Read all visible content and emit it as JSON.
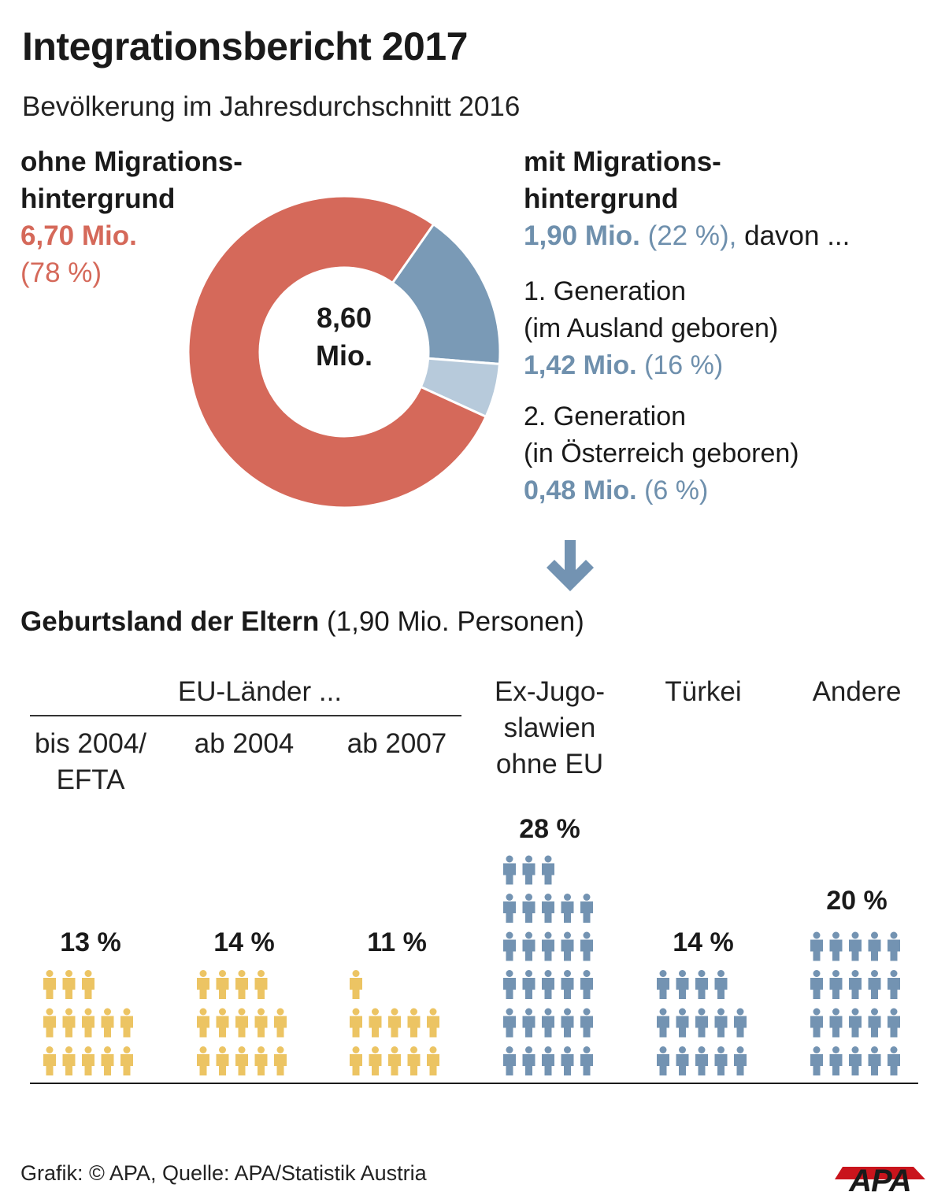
{
  "title": "Integrationsbericht 2017",
  "subtitle": "Bevölkerung im Jahresdurchschnitt 2016",
  "colors": {
    "red": "#d5695a",
    "blue_dark": "#7a9ab6",
    "blue_light": "#b7cadb",
    "eu_yellow": "#ecc463",
    "people_blue": "#7393b2"
  },
  "left": {
    "label_line1": "ohne Migrations-",
    "label_line2": "hintergrund",
    "value": "6,70 Mio.",
    "pct": "(78 %)"
  },
  "right": {
    "label_line1": "mit Migrations-",
    "label_line2": "hintergrund",
    "value": "1,90 Mio.",
    "pct": "(22 %),",
    "suffix": "davon ...",
    "gen1_line1": "1. Generation",
    "gen1_line2": "(im Ausland geboren)",
    "gen1_value": "1,42 Mio.",
    "gen1_pct": "(16 %)",
    "gen2_line1": "2. Generation",
    "gen2_line2": "(in Österreich geboren)",
    "gen2_value": "0,48 Mio.",
    "gen2_pct": "(6 %)"
  },
  "donut": {
    "center_line1": "8,60",
    "center_line2": "Mio."
  },
  "parents": {
    "title_bold": "Geburtsland der Eltern",
    "title_rest": "(1,90 Mio. Personen)",
    "eu_header": "EU-Länder ...",
    "col_labels": {
      "eu_bis2004_l1": "bis 2004/",
      "eu_bis2004_l2": "EFTA",
      "eu_ab2004": "ab 2004",
      "eu_ab2007": "ab 2007",
      "exyu_l1": "Ex-Jugo-",
      "exyu_l2": "slawien",
      "exyu_l3": "ohne EU",
      "tuerkei": "Türkei",
      "andere": "Andere"
    }
  },
  "chart_data": [
    {
      "type": "pie",
      "title": "Bevölkerung im Jahresdurchschnitt 2016",
      "total": "8,60 Mio.",
      "slices": [
        {
          "name": "ohne Migrationshintergrund",
          "value": 6.7,
          "pct": 78,
          "color": "#d5695a"
        },
        {
          "name": "1. Generation (im Ausland geboren)",
          "value": 1.42,
          "pct": 16,
          "color": "#7a9ab6"
        },
        {
          "name": "2. Generation (in Österreich geboren)",
          "value": 0.48,
          "pct": 6,
          "color": "#b7cadb"
        }
      ]
    },
    {
      "type": "bar",
      "title": "Geburtsland der Eltern (1,90 Mio. Personen)",
      "categories": [
        "bis 2004/EFTA",
        "ab 2004",
        "ab 2007",
        "Ex-Jugoslawien ohne EU",
        "Türkei",
        "Andere"
      ],
      "values": [
        13,
        14,
        11,
        28,
        14,
        20
      ],
      "value_labels": [
        "13 %",
        "14 %",
        "11 %",
        "28 %",
        "14 %",
        "20 %"
      ],
      "unit": "%"
    }
  ],
  "footer": "Grafik: © APA, Quelle: APA/Statistik Austria",
  "logo_text": "APA"
}
